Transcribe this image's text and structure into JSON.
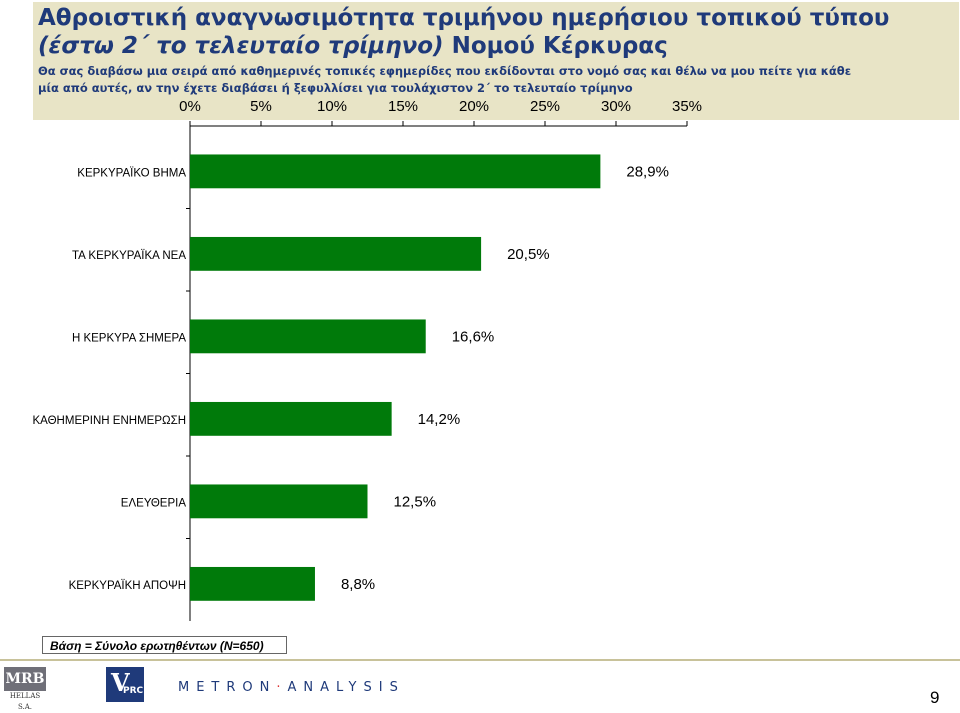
{
  "header": {
    "title_line1": "Αθροιστική αναγνωσιμότητα τριμήνου ημερήσιου τοπικού τύπου",
    "title_line2_italic": "(έστω 2΄ το τελευταίο τρίμηνο)",
    "title_line2_rest": " Νομού Κέρκυρας",
    "subtitle_line1": "Θα σας διαβάσω μια σειρά από καθημερινές τοπικές εφημερίδες που εκδίδονται στο νομό σας και θέλω να μου πείτε για κάθε",
    "subtitle_line2": "μία από αυτές, αν την έχετε διαβάσει ή ξεφυλλίσει για τουλάχιστον 2΄ το τελευταίο τρίμηνο"
  },
  "chart_data": {
    "type": "bar",
    "orientation": "horizontal",
    "categories": [
      "ΚΕΡΚΥΡΑΪΚΟ ΒΗΜΑ",
      "ΤΑ ΚΕΡΚΥΡΑΪΚΑ ΝΕΑ",
      "Η ΚΕΡΚΥΡΑ ΣΗΜΕΡΑ",
      "ΚΑΘΗΜΕΡΙΝΗ ΕΝΗΜΕΡΩΣΗ",
      "ΕΛΕΥΘΕΡΙΑ",
      "ΚΕΡΚΥΡΑΪΚΗ ΑΠΟΨΗ"
    ],
    "values": [
      28.9,
      20.5,
      16.6,
      14.2,
      12.5,
      8.8
    ],
    "data_labels": [
      "28,9%",
      "20,5%",
      "16,6%",
      "14,2%",
      "12,5%",
      "8,8%"
    ],
    "xlim": [
      0,
      35
    ],
    "x_ticks": [
      "0%",
      "5%",
      "10%",
      "15%",
      "20%",
      "25%",
      "30%",
      "35%"
    ],
    "axis_position": "top",
    "bar_color": "#007a0a",
    "legend": "none"
  },
  "footer": {
    "base_note": "Βάση = Σύνολο ερωτηθέντων (N=650)",
    "mrb_logo": "MRB",
    "mrb_sub": "HELLAS S.A.",
    "vprc_v": "V",
    "vprc_rest": "PRC",
    "metron_part1": "METRON",
    "metron_part2": "ANALYSIS",
    "page_number": "9"
  }
}
